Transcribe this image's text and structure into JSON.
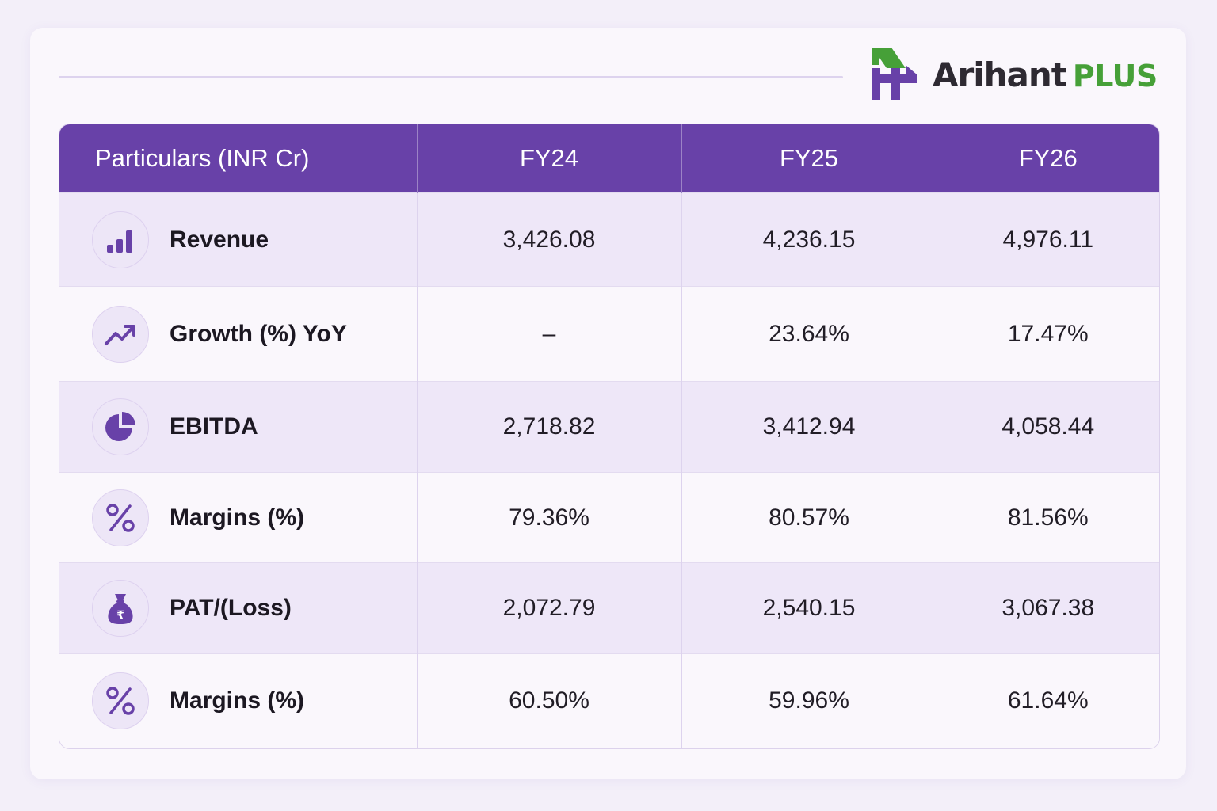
{
  "brand": {
    "name": "Arihant",
    "suffix": "PLUS",
    "colors": {
      "purple": "#6841a8",
      "green": "#46a038",
      "dark": "#2e2a32"
    }
  },
  "table": {
    "header": {
      "particulars": "Particulars (INR Cr)",
      "fy24": "FY24",
      "fy25": "FY25",
      "fy26": "FY26"
    },
    "rows": [
      {
        "icon": "bar-chart-icon",
        "label": "Revenue",
        "fy24": "3,426.08",
        "fy25": "4,236.15",
        "fy26": "4,976.11"
      },
      {
        "icon": "trend-up-icon",
        "label": "Growth (%) YoY",
        "fy24": "–",
        "fy25": "23.64%",
        "fy26": "17.47%"
      },
      {
        "icon": "pie-chart-icon",
        "label": "EBITDA",
        "fy24": "2,718.82",
        "fy25": "3,412.94",
        "fy26": "4,058.44"
      },
      {
        "icon": "percent-icon",
        "label": "Margins (%)",
        "fy24": "79.36%",
        "fy25": "80.57%",
        "fy26": "81.56%"
      },
      {
        "icon": "money-bag-icon",
        "label": "PAT/(Loss)",
        "fy24": "2,072.79",
        "fy25": "2,540.15",
        "fy26": "3,067.38"
      },
      {
        "icon": "percent-icon",
        "label": "Margins (%)",
        "fy24": "60.50%",
        "fy25": "59.96%",
        "fy26": "61.64%"
      }
    ]
  },
  "theme": {
    "header_bg": "#6841a8",
    "row_shaded": "#eee7f8",
    "row_plain": "#faf7fc",
    "icon_color": "#6841a8"
  }
}
